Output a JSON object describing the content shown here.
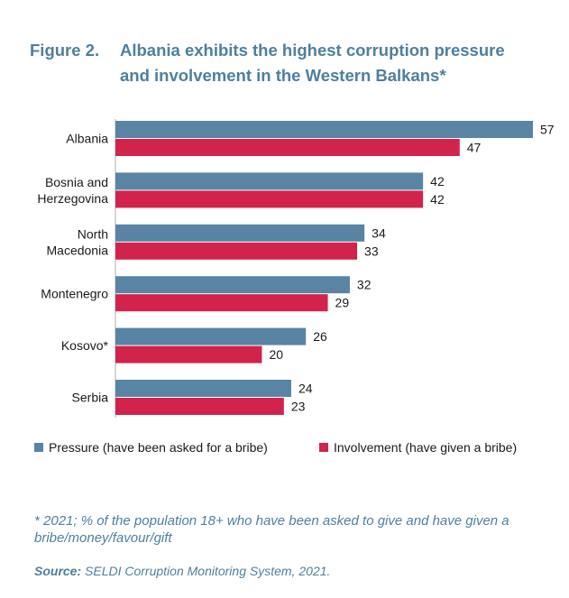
{
  "figure": {
    "number": "Figure 2.",
    "title_line1": "Albania exhibits the highest corruption pressure",
    "title_line2": "and involvement in the Western Balkans*"
  },
  "chart_data": {
    "type": "bar",
    "orientation": "horizontal",
    "categories": [
      [
        "Albania"
      ],
      [
        "Bosnia and",
        "Herzegovina"
      ],
      [
        "North",
        "Macedonia"
      ],
      [
        "Montenegro"
      ],
      [
        "Kosovo*"
      ],
      [
        "Serbia"
      ]
    ],
    "series": [
      {
        "name": "Pressure (have been asked for a bribe)",
        "color": "#5984a3",
        "values": [
          57,
          42,
          34,
          32,
          26,
          24
        ]
      },
      {
        "name": "Involvement (have given a bribe)",
        "color": "#d1234c",
        "values": [
          47,
          42,
          33,
          29,
          20,
          23
        ]
      }
    ],
    "xlim": [
      0,
      57
    ],
    "grid": false,
    "legend_position": "bottom"
  },
  "footnote": "* 2021; % of the population 18+ who have been asked to give and have given a bribe/money/favour/gift",
  "source": {
    "label": "Source:",
    "text": " SELDI Corruption Monitoring System, 2021."
  }
}
